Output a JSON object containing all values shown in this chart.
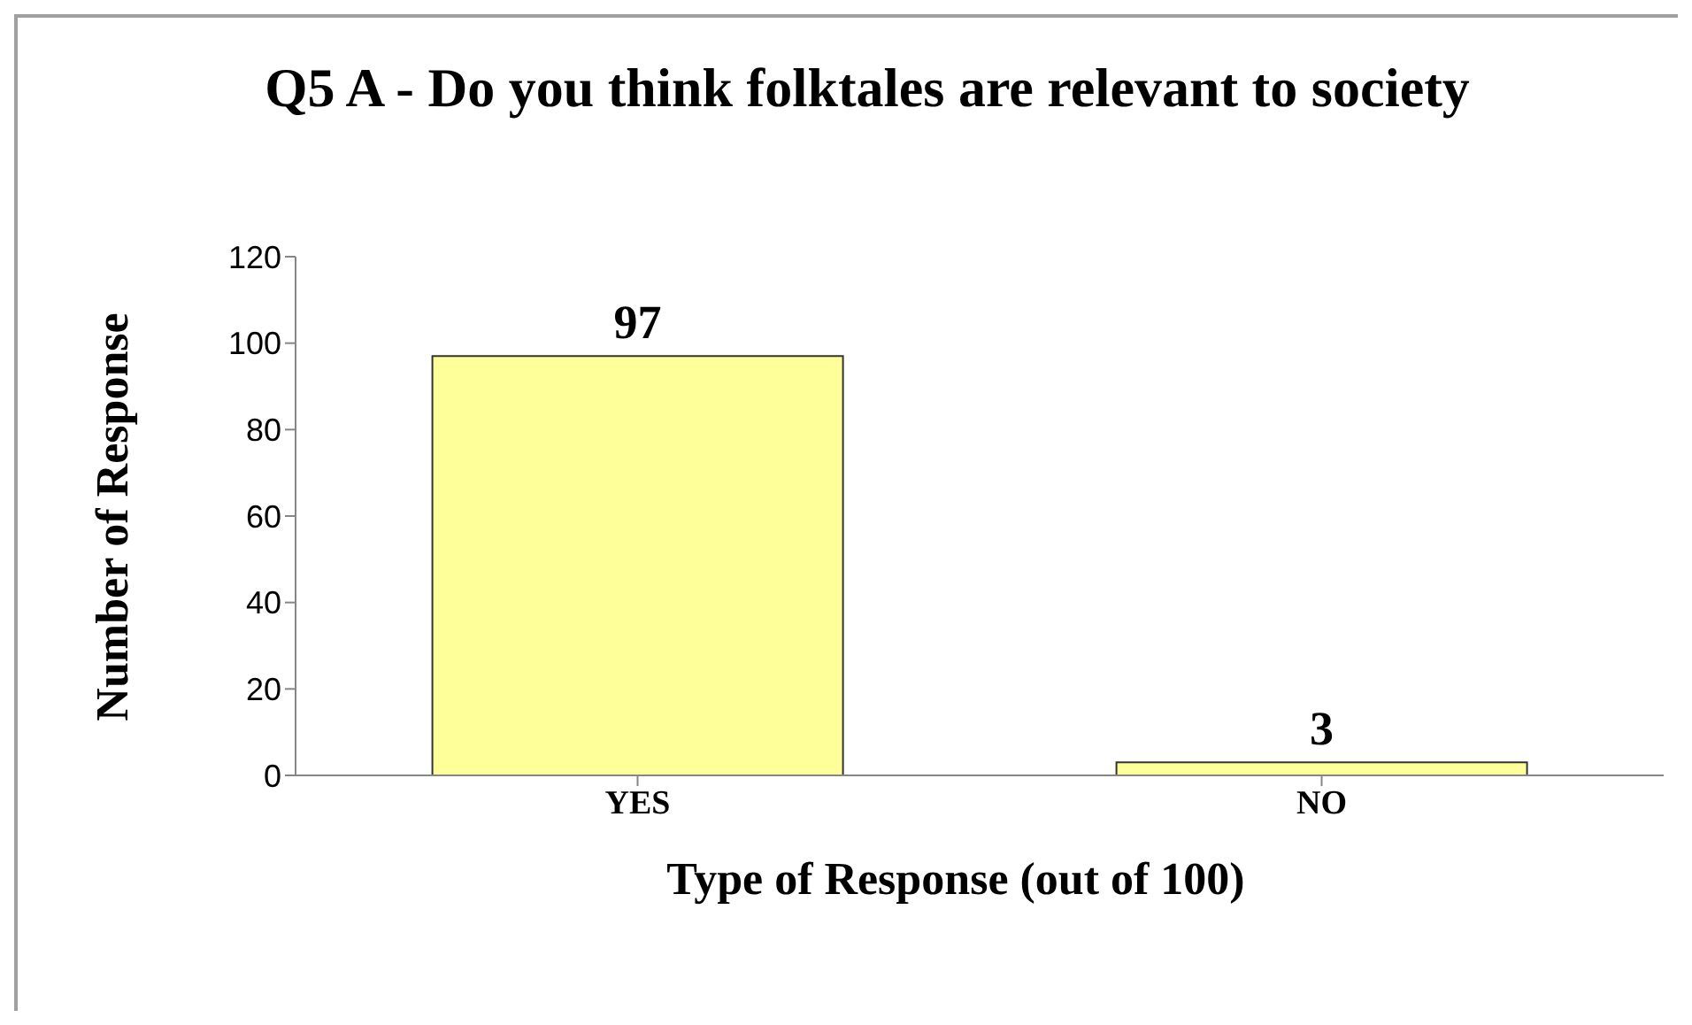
{
  "chart_data": {
    "type": "bar",
    "title": "Q5 A - Do you think folktales are relevant to society",
    "xlabel": "Type of Response (out of 100)",
    "ylabel": "Number of Response",
    "categories": [
      "YES",
      "NO"
    ],
    "values": [
      97,
      3
    ],
    "color": "#ffff99",
    "ylim": [
      0,
      120
    ],
    "yticks": [
      0,
      20,
      40,
      60,
      80,
      100,
      120
    ],
    "data_labels": true,
    "grid": false,
    "legend": false
  }
}
